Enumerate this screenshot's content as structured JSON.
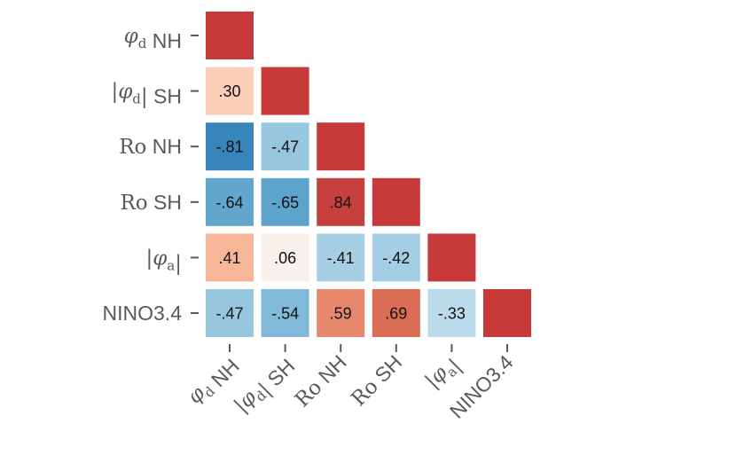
{
  "chart_data": {
    "type": "heatmap",
    "title": "",
    "variables": [
      {
        "sym": "φ",
        "sub": "d",
        "abs": false,
        "rest": "NH"
      },
      {
        "sym": "φ",
        "sub": "d",
        "abs": true,
        "rest": "SH"
      },
      {
        "sym": "Ro",
        "sub": "",
        "abs": false,
        "rest": "NH"
      },
      {
        "sym": "Ro",
        "sub": "",
        "abs": false,
        "rest": "SH"
      },
      {
        "sym": "φ",
        "sub": "a",
        "abs": true,
        "rest": ""
      },
      {
        "sym": "",
        "sub": "",
        "abs": false,
        "rest": "NINO3.4"
      }
    ],
    "layout": "lower-triangle",
    "colormap": "diverging red-blue",
    "matrix": [
      [
        1.0
      ],
      [
        0.3,
        1.0
      ],
      [
        -0.81,
        -0.47,
        1.0
      ],
      [
        -0.64,
        -0.65,
        0.84,
        1.0
      ],
      [
        0.41,
        0.06,
        -0.41,
        -0.42,
        1.0
      ],
      [
        -0.47,
        -0.54,
        0.59,
        0.69,
        -0.33,
        1.0
      ]
    ],
    "value_labels": [
      [
        ""
      ],
      [
        ".30",
        ""
      ],
      [
        "-.81",
        "-.47",
        ""
      ],
      [
        "-.64",
        "-.65",
        ".84",
        ""
      ],
      [
        ".41",
        ".06",
        "-.41",
        "-.42",
        ""
      ],
      [
        "-.47",
        "-.54",
        ".59",
        ".69",
        "-.33",
        ""
      ]
    ]
  }
}
